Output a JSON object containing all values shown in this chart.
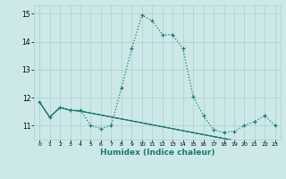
{
  "xlabel": "Humidex (Indice chaleur)",
  "xlim": [
    -0.5,
    23.5
  ],
  "ylim": [
    10.5,
    15.3
  ],
  "yticks": [
    11,
    12,
    13,
    14,
    15
  ],
  "xticks": [
    0,
    1,
    2,
    3,
    4,
    5,
    6,
    7,
    8,
    9,
    10,
    11,
    12,
    13,
    14,
    15,
    16,
    17,
    18,
    19,
    20,
    21,
    22,
    23
  ],
  "bg_color": "#cce8e8",
  "grid_color": "#aacfcf",
  "line_color": "#1a7a6e",
  "main_series": [
    11.85,
    11.3,
    11.65,
    11.55,
    11.55,
    11.0,
    10.9,
    11.0,
    12.35,
    13.75,
    14.95,
    14.75,
    14.25,
    14.25,
    13.75,
    12.05,
    11.35,
    10.85,
    10.75,
    10.8,
    11.0,
    11.15,
    11.35,
    11.0
  ],
  "flat_series": [
    [
      11.85,
      11.3,
      11.65,
      11.55,
      11.52,
      11.45,
      11.38,
      11.31,
      11.24,
      11.17,
      11.1,
      11.03,
      10.96,
      10.89,
      10.82,
      10.75,
      10.68,
      10.61,
      10.54,
      10.47,
      10.4,
      10.33,
      10.26,
      10.19
    ],
    [
      11.85,
      11.3,
      11.65,
      11.55,
      11.52,
      11.45,
      11.38,
      11.31,
      11.24,
      11.17,
      11.1,
      11.03,
      10.96,
      10.89,
      10.82,
      10.75,
      10.68,
      10.61,
      10.54,
      10.47,
      10.4,
      10.33,
      10.26,
      10.19
    ],
    [
      11.85,
      11.3,
      11.65,
      11.55,
      11.52,
      11.45,
      11.38,
      11.31,
      11.24,
      11.17,
      11.1,
      11.03,
      10.96,
      10.89,
      10.82,
      10.75,
      10.68,
      10.61,
      10.54,
      10.47,
      10.4,
      10.33,
      10.26,
      10.19
    ]
  ]
}
